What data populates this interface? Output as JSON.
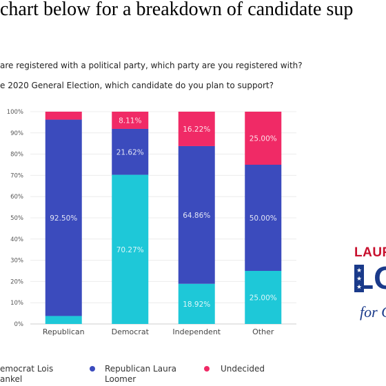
{
  "header": {
    "headline": "chart below for a breakdown of candidate sup",
    "question1": "are registered with a political party, which party are you registered with?",
    "question2": "e 2020 General Election, which candidate do you plan to support?"
  },
  "logo": {
    "line1": "LAURA",
    "line2": "LO",
    "line3": "for C"
  },
  "colors": {
    "Democrat Lois Frankel": "#1ec8d8",
    "Republican Laura Loomer": "#3b4bbd",
    "Undecided": "#f02a66"
  },
  "chart_data": {
    "type": "bar",
    "stacked": true,
    "categories": [
      "Republican",
      "Democrat",
      "Independent",
      "Other"
    ],
    "series": [
      {
        "name": "Democrat Lois Frankel",
        "values": [
          3.75,
          70.27,
          18.92,
          25.0
        ],
        "labels": [
          "",
          "70.27%",
          "18.92%",
          "25.00%"
        ]
      },
      {
        "name": "Republican Laura Loomer",
        "values": [
          92.5,
          21.62,
          64.86,
          50.0
        ],
        "labels": [
          "92.50%",
          "21.62%",
          "64.86%",
          "50.00%"
        ]
      },
      {
        "name": "Undecided",
        "values": [
          3.75,
          8.11,
          16.22,
          25.0
        ],
        "labels": [
          "",
          "8.11%",
          "16.22%",
          "25.00%"
        ]
      }
    ],
    "yticks": [
      "0%",
      "10%",
      "20%",
      "30%",
      "40%",
      "50%",
      "60%",
      "70%",
      "80%",
      "90%",
      "100%"
    ],
    "ylim": [
      0,
      100
    ],
    "legend": {
      "position": "bottom",
      "items": [
        {
          "series": "Democrat Lois Frankel",
          "label_lines": [
            "emocrat Lois",
            "ankel"
          ]
        },
        {
          "series": "Republican Laura Loomer",
          "label_lines": [
            "Republican Laura",
            "Loomer"
          ]
        },
        {
          "series": "Undecided",
          "label_lines": [
            "Undecided",
            ""
          ]
        }
      ]
    }
  }
}
